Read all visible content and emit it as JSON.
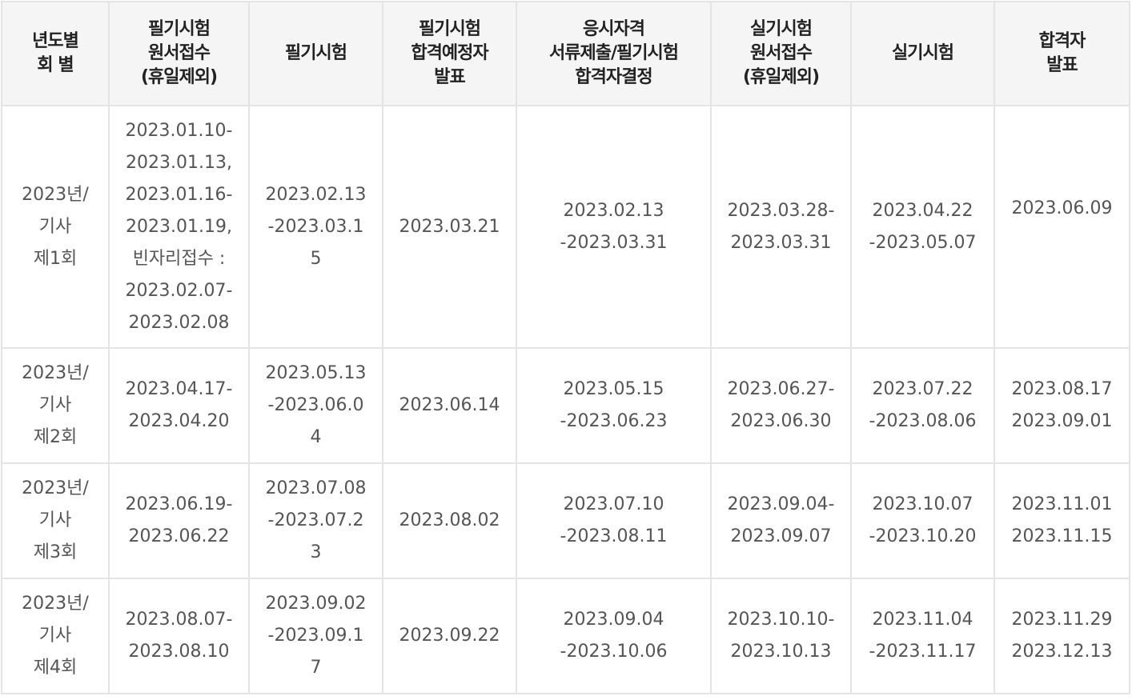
{
  "table": {
    "headers": [
      [
        "년도별",
        "회 별"
      ],
      [
        "필기시험",
        "원서접수",
        "(휴일제외)"
      ],
      [
        "필기시험"
      ],
      [
        "필기시험",
        "합격예정자",
        "발표"
      ],
      [
        "응시자격",
        "서류제출/필기시험",
        "합격자결정"
      ],
      [
        "실기시험",
        "원서접수",
        "(휴일제외)"
      ],
      [
        "실기시험"
      ],
      [
        "합격자",
        "발표"
      ]
    ],
    "rows": [
      [
        [
          "2023년/",
          "기사",
          "제1회"
        ],
        [
          "2023.01.10-",
          "2023.01.13,",
          "2023.01.16-",
          "2023.01.19,",
          "빈자리접수 :",
          "2023.02.07-",
          "2023.02.08"
        ],
        [
          "2023.02.13",
          "-2023.03.1",
          "5"
        ],
        [
          "2023.03.21"
        ],
        [
          "2023.02.13",
          "-2023.03.31"
        ],
        [
          "2023.03.28-",
          "2023.03.31"
        ],
        [
          "2023.04.22",
          "-2023.05.07"
        ],
        [
          "2023.06.09"
        ]
      ],
      [
        [
          "2023년/",
          "기사",
          "제2회"
        ],
        [
          "2023.04.17-",
          "2023.04.20"
        ],
        [
          "2023.05.13",
          "-2023.06.0",
          "4"
        ],
        [
          "2023.06.14"
        ],
        [
          "2023.05.15",
          "-2023.06.23"
        ],
        [
          "2023.06.27-",
          "2023.06.30"
        ],
        [
          "2023.07.22",
          "-2023.08.06"
        ],
        [
          "2023.08.17",
          "2023.09.01"
        ]
      ],
      [
        [
          "2023년/",
          "기사",
          "제3회"
        ],
        [
          "2023.06.19-",
          "2023.06.22"
        ],
        [
          "2023.07.08",
          "-2023.07.2",
          "3"
        ],
        [
          "2023.08.02"
        ],
        [
          "2023.07.10",
          "-2023.08.11"
        ],
        [
          "2023.09.04-",
          "2023.09.07"
        ],
        [
          "2023.10.07",
          "-2023.10.20"
        ],
        [
          "2023.11.01",
          "2023.11.15"
        ]
      ],
      [
        [
          "2023년/",
          "기사",
          "제4회"
        ],
        [
          "2023.08.07-",
          "2023.08.10"
        ],
        [
          "2023.09.02",
          "-2023.09.1",
          "7"
        ],
        [
          "2023.09.22"
        ],
        [
          "2023.09.04",
          "-2023.10.06"
        ],
        [
          "2023.10.10-",
          "2023.10.13"
        ],
        [
          "2023.11.04",
          "-2023.11.17"
        ],
        [
          "2023.11.29",
          "2023.12.13"
        ]
      ]
    ]
  }
}
